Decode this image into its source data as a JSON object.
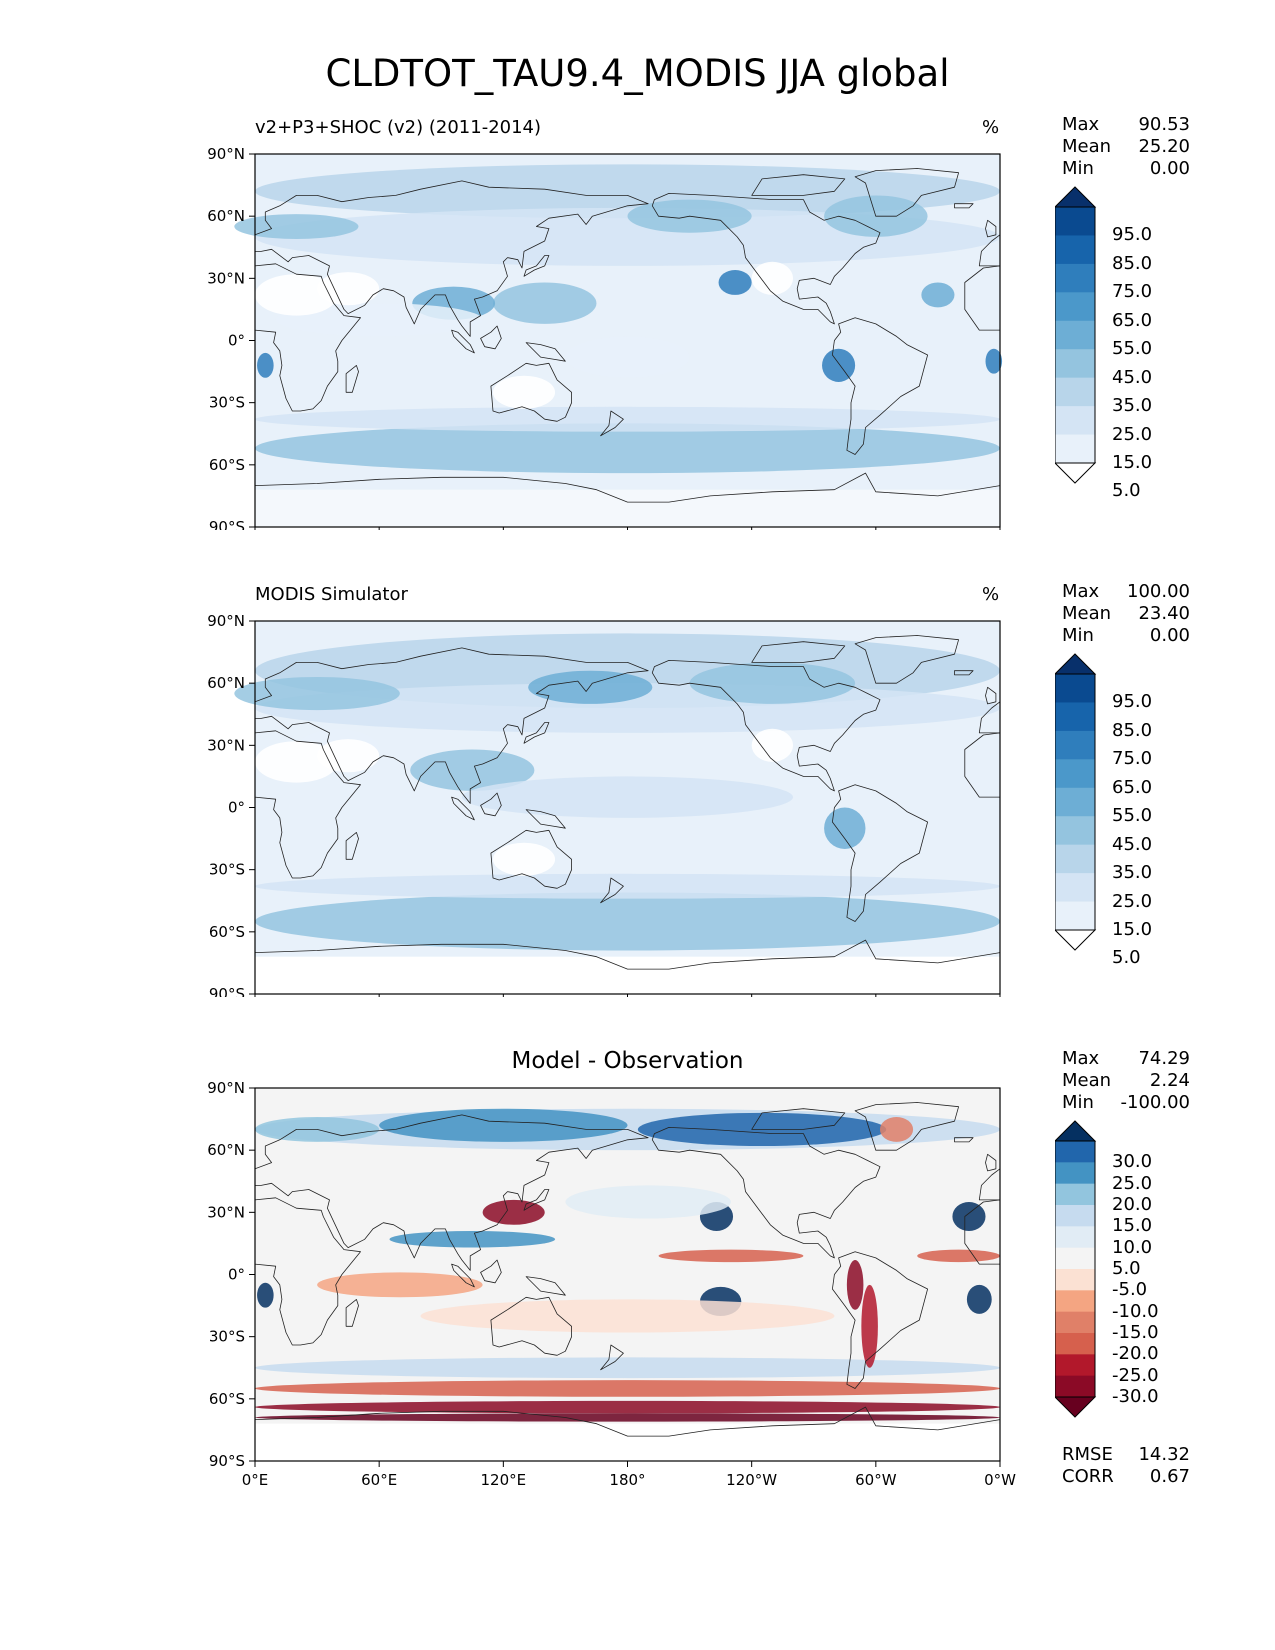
{
  "title": "CLDTOT_TAU9.4_MODIS JJA global",
  "x_ticks": [
    "0°E",
    "60°E",
    "120°E",
    "180°",
    "120°W",
    "60°W",
    "0°W"
  ],
  "y_ticks": [
    "90°N",
    "60°N",
    "30°N",
    "0°",
    "30°S",
    "60°S",
    "90°S"
  ],
  "panels": [
    {
      "title": "v2+P3+SHOC (v2) (2011-2014)",
      "units": "%",
      "stats": [
        {
          "label": "Max",
          "value": "90.53"
        },
        {
          "label": "Mean",
          "value": "25.20"
        },
        {
          "label": "Min",
          "value": "0.00"
        }
      ],
      "colorbar": {
        "levels": [
          "95.0",
          "85.0",
          "75.0",
          "65.0",
          "55.0",
          "45.0",
          "35.0",
          "25.0",
          "15.0",
          "5.0"
        ],
        "colors": [
          "#08306b",
          "#0a4a90",
          "#1764ab",
          "#2f7ebc",
          "#4b98ca",
          "#6daed5",
          "#94c4df",
          "#b8d5ea",
          "#d4e4f4",
          "#e8f1fa",
          "#ffffff"
        ]
      }
    },
    {
      "title": "MODIS Simulator",
      "units": "%",
      "stats": [
        {
          "label": "Max",
          "value": "100.00"
        },
        {
          "label": "Mean",
          "value": "23.40"
        },
        {
          "label": "Min",
          "value": "0.00"
        }
      ],
      "colorbar": {
        "levels": [
          "95.0",
          "85.0",
          "75.0",
          "65.0",
          "55.0",
          "45.0",
          "35.0",
          "25.0",
          "15.0",
          "5.0"
        ],
        "colors": [
          "#08306b",
          "#0a4a90",
          "#1764ab",
          "#2f7ebc",
          "#4b98ca",
          "#6daed5",
          "#94c4df",
          "#b8d5ea",
          "#d4e4f4",
          "#e8f1fa",
          "#ffffff"
        ]
      }
    },
    {
      "title": "Model - Observation",
      "units": "",
      "stats": [
        {
          "label": "Max",
          "value": "74.29"
        },
        {
          "label": "Mean",
          "value": "2.24"
        },
        {
          "label": "Min",
          "value": "-100.00"
        }
      ],
      "extra_stats": [
        {
          "label": "RMSE",
          "value": "14.32"
        },
        {
          "label": "CORR",
          "value": "0.67"
        }
      ],
      "colorbar": {
        "levels": [
          "30.0",
          "25.0",
          "20.0",
          "15.0",
          "10.0",
          "5.0",
          "-5.0",
          "-10.0",
          "-15.0",
          "-20.0",
          "-25.0",
          "-30.0"
        ],
        "colors": [
          "#053061",
          "#2166ac",
          "#4393c3",
          "#92c5de",
          "#c6dbef",
          "#e1ecf5",
          "#f4f4f4",
          "#fbe1d3",
          "#f4a582",
          "#e08068",
          "#d6604d",
          "#b2182b",
          "#8b0a26",
          "#67001f"
        ]
      }
    }
  ],
  "chart_data": [
    {
      "type": "heatmap",
      "title": "v2+P3+SHOC (v2) (2011-2014)",
      "units": "%",
      "xlim": [
        0,
        360
      ],
      "ylim": [
        -90,
        90
      ],
      "stats": {
        "max": 90.53,
        "mean": 25.2,
        "min": 0.0
      }
    },
    {
      "type": "heatmap",
      "title": "MODIS Simulator",
      "units": "%",
      "xlim": [
        0,
        360
      ],
      "ylim": [
        -90,
        90
      ],
      "stats": {
        "max": 100.0,
        "mean": 23.4,
        "min": 0.0
      }
    },
    {
      "type": "heatmap",
      "title": "Model - Observation",
      "xlim": [
        0,
        360
      ],
      "ylim": [
        -90,
        90
      ],
      "stats": {
        "max": 74.29,
        "mean": 2.24,
        "min": -100.0,
        "rmse": 14.32,
        "corr": 0.67
      }
    }
  ]
}
